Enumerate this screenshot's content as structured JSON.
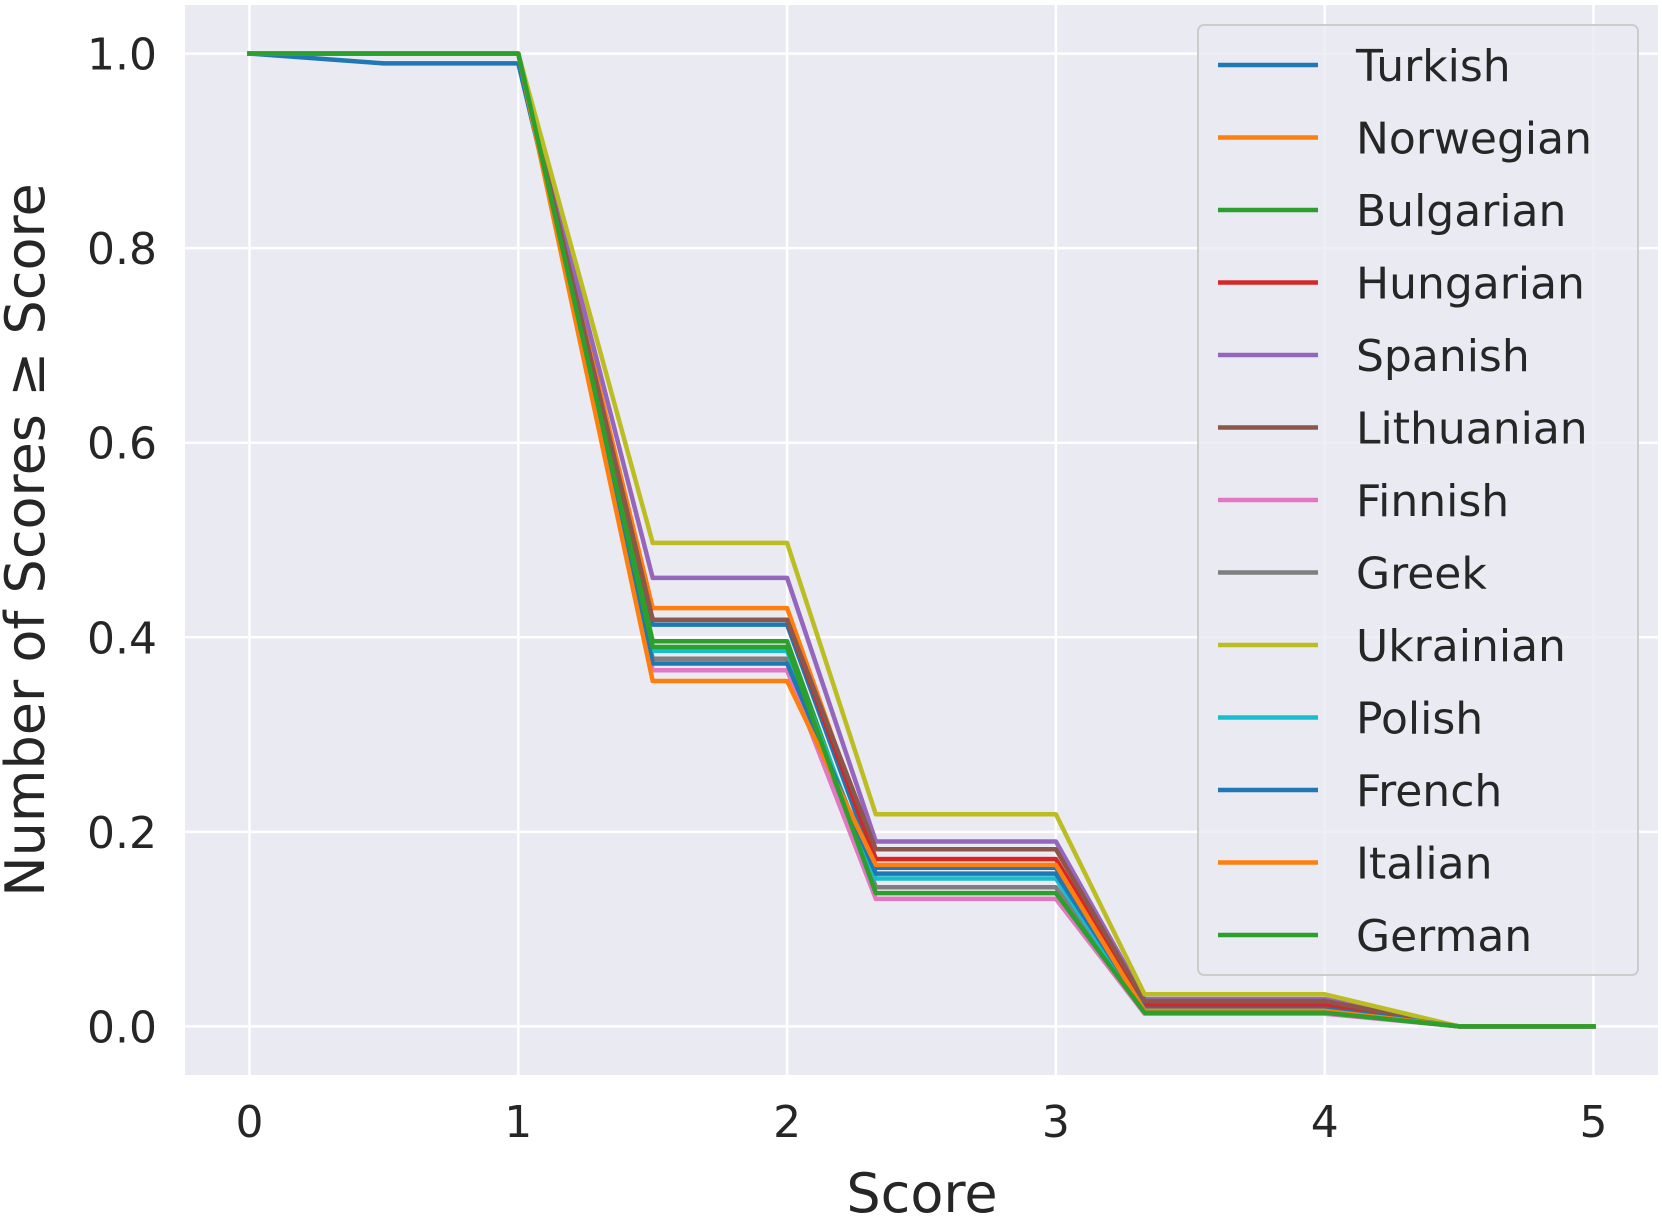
{
  "chart_data": {
    "type": "line",
    "title": "",
    "xlabel": "Score",
    "ylabel": "Number of Scores ≥ Score",
    "xlim": [
      -0.24,
      5.24
    ],
    "ylim": [
      -0.05,
      1.05
    ],
    "xticks": [
      0,
      1,
      2,
      3,
      4,
      5
    ],
    "yticks": [
      0.0,
      0.2,
      0.4,
      0.6,
      0.8,
      1.0
    ],
    "xtick_labels": [
      "0",
      "1",
      "2",
      "3",
      "4",
      "5"
    ],
    "ytick_labels": [
      "0.0",
      "0.2",
      "0.4",
      "0.6",
      "0.8",
      "1.0"
    ],
    "grid": true,
    "legend_position": "top-right",
    "x": [
      0,
      0.5,
      1,
      1.5,
      2,
      2.33,
      3,
      3.33,
      4,
      4.5,
      5
    ],
    "series": [
      {
        "name": "Turkish",
        "color": "#1f77b4",
        "values": [
          1.0,
          0.99,
          0.99,
          0.413,
          0.413,
          0.163,
          0.163,
          0.017,
          0.017,
          0.0,
          0.0
        ]
      },
      {
        "name": "Norwegian",
        "color": "#ff7f0e",
        "values": [
          1.0,
          1.0,
          1.0,
          0.43,
          0.43,
          0.172,
          0.172,
          0.02,
          0.02,
          0.0,
          0.0
        ]
      },
      {
        "name": "Bulgarian",
        "color": "#2ca02c",
        "values": [
          1.0,
          1.0,
          1.0,
          0.396,
          0.396,
          0.143,
          0.143,
          0.014,
          0.014,
          0.0,
          0.0
        ]
      },
      {
        "name": "Hungarian",
        "color": "#d62728",
        "values": [
          1.0,
          1.0,
          1.0,
          0.418,
          0.418,
          0.172,
          0.172,
          0.022,
          0.022,
          0.0,
          0.0
        ]
      },
      {
        "name": "Spanish",
        "color": "#9467bd",
        "values": [
          1.0,
          1.0,
          1.0,
          0.461,
          0.461,
          0.19,
          0.19,
          0.028,
          0.028,
          0.0,
          0.0
        ]
      },
      {
        "name": "Lithuanian",
        "color": "#8c564b",
        "values": [
          1.0,
          1.0,
          1.0,
          0.418,
          0.418,
          0.182,
          0.182,
          0.026,
          0.026,
          0.0,
          0.0
        ]
      },
      {
        "name": "Finnish",
        "color": "#e377c2",
        "values": [
          1.0,
          1.0,
          1.0,
          0.366,
          0.366,
          0.131,
          0.131,
          0.013,
          0.013,
          0.0,
          0.0
        ]
      },
      {
        "name": "Greek",
        "color": "#7f7f7f",
        "values": [
          1.0,
          1.0,
          1.0,
          0.378,
          0.378,
          0.143,
          0.143,
          0.016,
          0.016,
          0.0,
          0.0
        ]
      },
      {
        "name": "Ukrainian",
        "color": "#bcbd22",
        "values": [
          1.0,
          1.0,
          1.0,
          0.497,
          0.497,
          0.218,
          0.218,
          0.033,
          0.033,
          0.0,
          0.0
        ]
      },
      {
        "name": "Polish",
        "color": "#17becf",
        "values": [
          1.0,
          1.0,
          1.0,
          0.386,
          0.386,
          0.152,
          0.152,
          0.015,
          0.015,
          0.0,
          0.0
        ]
      },
      {
        "name": "French",
        "color": "#1f77b4",
        "values": [
          1.0,
          1.0,
          1.0,
          0.373,
          0.373,
          0.157,
          0.157,
          0.018,
          0.018,
          0.0,
          0.0
        ]
      },
      {
        "name": "Italian",
        "color": "#ff7f0e",
        "values": [
          1.0,
          1.0,
          1.0,
          0.355,
          0.355,
          0.166,
          0.166,
          0.016,
          0.016,
          0.0,
          0.0
        ]
      },
      {
        "name": "German",
        "color": "#2ca02c",
        "values": [
          1.0,
          1.0,
          1.0,
          0.39,
          0.39,
          0.137,
          0.137,
          0.014,
          0.014,
          0.0,
          0.0
        ]
      }
    ]
  }
}
